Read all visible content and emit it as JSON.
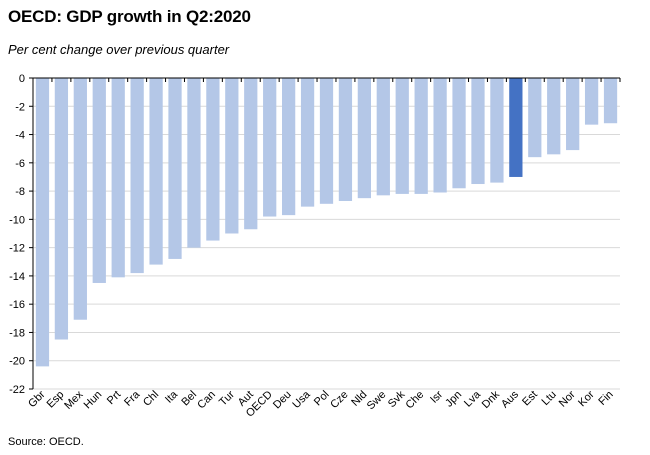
{
  "header": {
    "title": "OECD: GDP growth in Q2:2020",
    "subtitle": "Per cent change over previous quarter"
  },
  "footer": {
    "source": "Source: OECD."
  },
  "colors": {
    "bar": "#b4c7e7",
    "highlight": "#4472c4",
    "grid": "#d9d9d9",
    "axis": "#000000"
  },
  "chart_data": {
    "type": "bar",
    "title": "OECD: GDP growth in Q2:2020",
    "subtitle": "Per cent change over previous quarter",
    "xlabel": "",
    "ylabel": "",
    "ylim": [
      -22,
      0
    ],
    "yticks": [
      0,
      -2,
      -4,
      -6,
      -8,
      -10,
      -12,
      -14,
      -16,
      -18,
      -20,
      -22
    ],
    "grid": true,
    "legend": "none",
    "highlight": "Aus",
    "categories": [
      "Gbr",
      "Esp",
      "Mex",
      "Hun",
      "Prt",
      "Fra",
      "Chl",
      "Ita",
      "Bel",
      "Can",
      "Tur",
      "Aut",
      "OECD",
      "Deu",
      "Usa",
      "Pol",
      "Cze",
      "Nld",
      "Swe",
      "Svk",
      "Che",
      "Isr",
      "Jpn",
      "Lva",
      "Dnk",
      "Aus",
      "Est",
      "Ltu",
      "Nor",
      "Kor",
      "Fin"
    ],
    "values": [
      -20.4,
      -18.5,
      -17.1,
      -14.5,
      -14.1,
      -13.8,
      -13.2,
      -12.8,
      -12.0,
      -11.5,
      -11.0,
      -10.7,
      -9.8,
      -9.7,
      -9.1,
      -8.9,
      -8.7,
      -8.5,
      -8.3,
      -8.2,
      -8.2,
      -8.1,
      -7.8,
      -7.5,
      -7.4,
      -7.0,
      -5.6,
      -5.4,
      -5.1,
      -3.3,
      -3.2
    ]
  }
}
